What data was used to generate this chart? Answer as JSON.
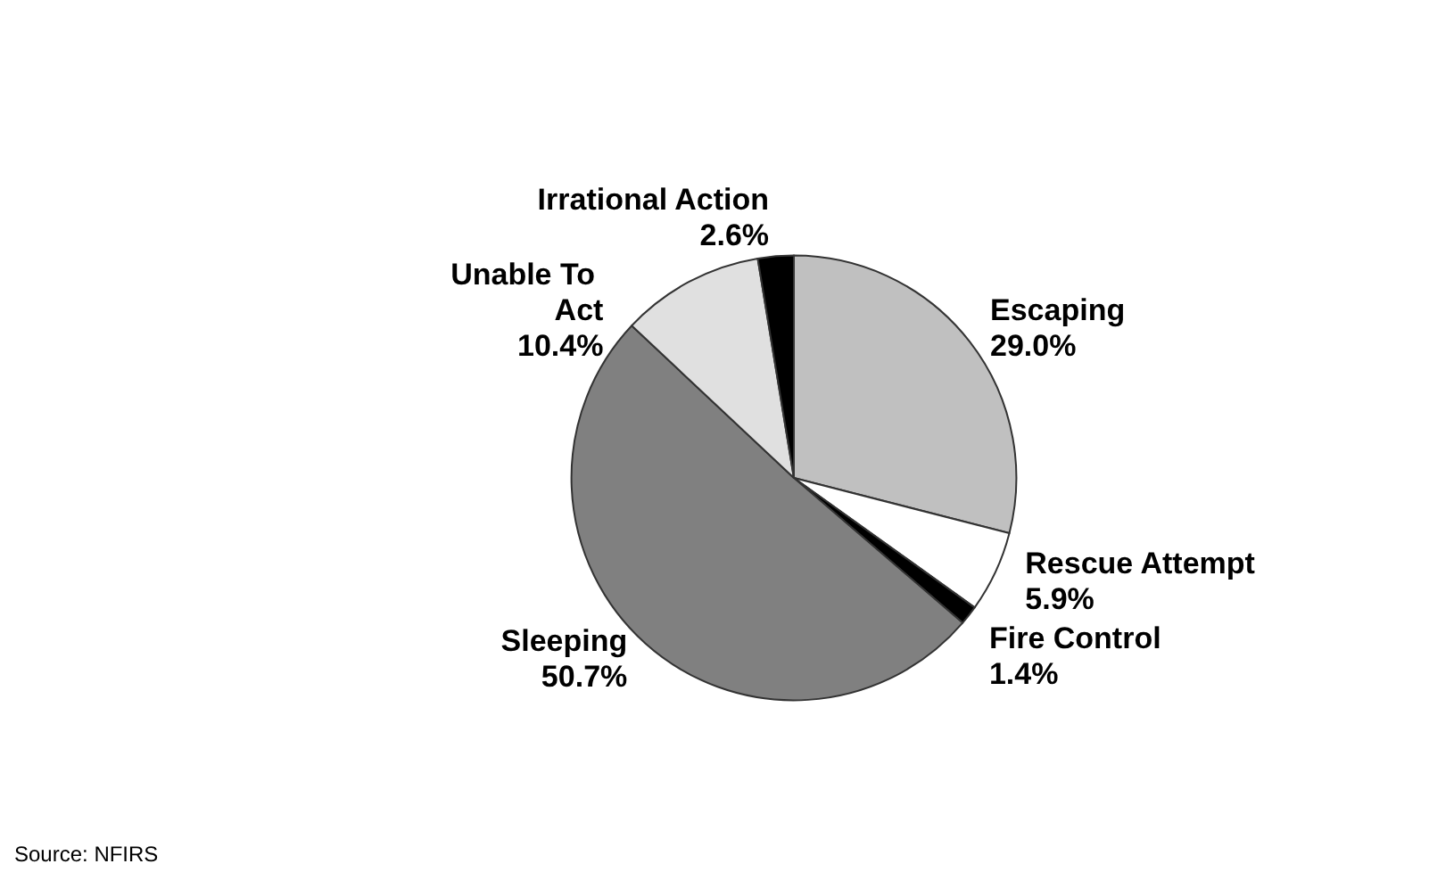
{
  "chart_data": {
    "type": "pie",
    "categories": [
      "Escaping",
      "Rescue Attempt",
      "Fire Control",
      "Sleeping",
      "Unable To Act",
      "Irrational Action"
    ],
    "values": [
      29.0,
      5.9,
      1.4,
      50.7,
      10.4,
      2.6
    ],
    "colors": [
      "#c0c0c0",
      "#ffffff",
      "#000000",
      "#808080",
      "#e0e0e0",
      "#000000"
    ],
    "value_labels": [
      "29.0%",
      "5.9%",
      "1.4%",
      "50.7%",
      "10.4%",
      "2.6%"
    ],
    "annotations": [
      "Source: NFIRS"
    ],
    "legend": false
  }
}
